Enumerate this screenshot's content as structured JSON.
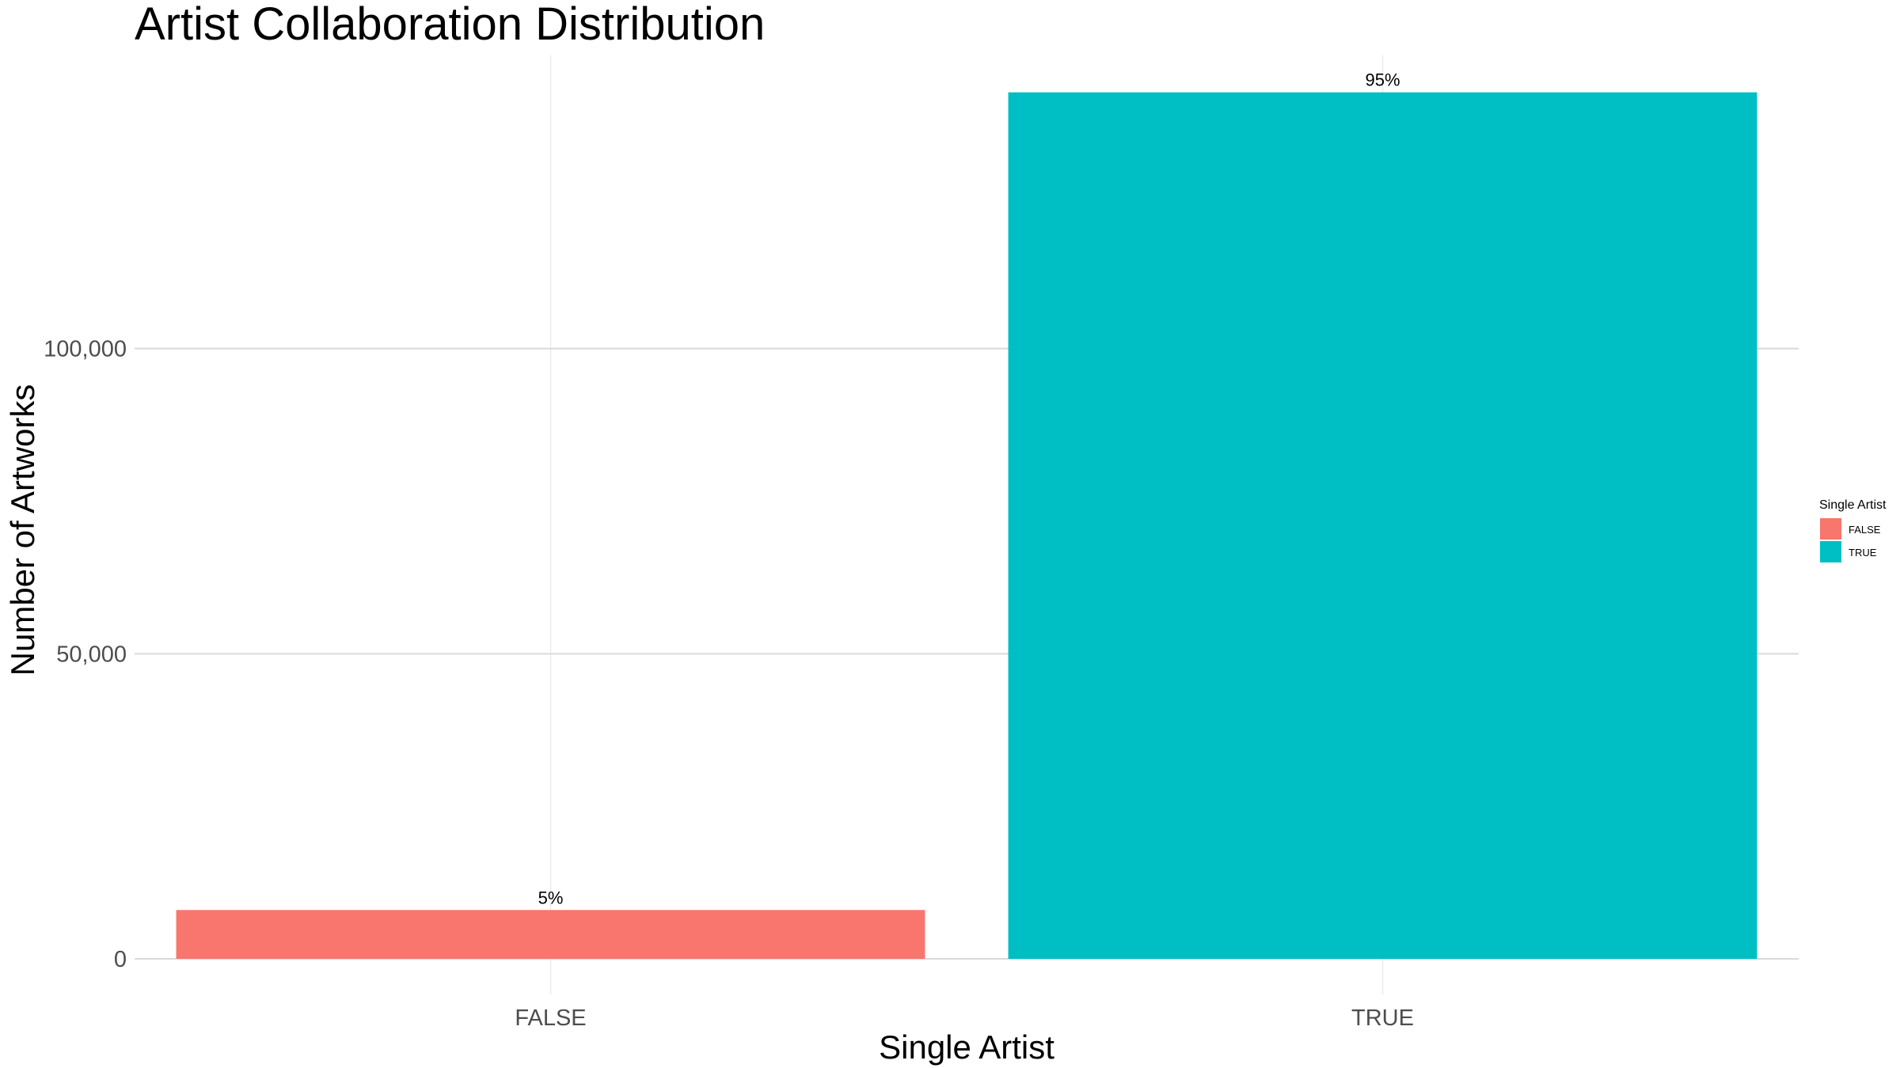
{
  "chart_data": {
    "type": "bar",
    "title": "Artist Collaboration Distribution",
    "xlabel": "Single Artist",
    "ylabel": "Number of Artworks",
    "categories": [
      "FALSE",
      "TRUE"
    ],
    "values": [
      8000,
      142000
    ],
    "data_labels": [
      "5%",
      "95%"
    ],
    "colors": [
      "#F8766D",
      "#00BFC4"
    ],
    "ylim": [
      0,
      150000
    ],
    "yticks": [
      {
        "value": 0,
        "label": "0"
      },
      {
        "value": 50000,
        "label": "50,000"
      },
      {
        "value": 100000,
        "label": "100,000"
      }
    ],
    "grid": true,
    "legend": {
      "title": "Single Artist",
      "placement": "right",
      "items": [
        {
          "label": "FALSE",
          "color": "#F8766D"
        },
        {
          "label": "TRUE",
          "color": "#00BFC4"
        }
      ]
    }
  }
}
